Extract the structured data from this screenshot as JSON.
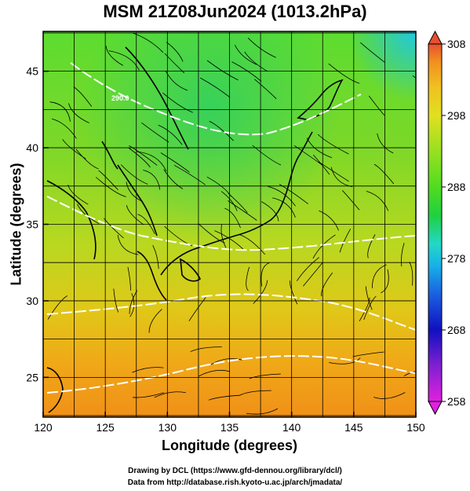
{
  "title": "MSM 21Z08Jun2024 (1013.2hPa)",
  "xlabel": "Longitude (degrees)",
  "ylabel": "Latitude  (degrees)",
  "credit": {
    "line1": "Drawing by DCL (https://www.gfd-dennou.org/library/dcl/)",
    "line2": "Data from http://database.rish.kyoto-u.ac.jp/arch/jmadata/"
  },
  "map": {
    "lon_range": [
      120,
      150
    ],
    "lat_range": [
      22.4,
      47.6
    ],
    "lon_ticks": [
      120,
      125,
      130,
      135,
      140,
      145,
      150
    ],
    "lat_ticks": [
      25,
      30,
      35,
      40,
      45
    ],
    "grid": true,
    "contour_label": "290.0"
  },
  "colorbar": {
    "min": 258,
    "max": 308,
    "ticks": [
      258,
      268,
      278,
      288,
      298,
      308
    ],
    "colors": [
      "#e020e0",
      "#8020d0",
      "#1010c0",
      "#1a60e0",
      "#18b0e8",
      "#22d8c8",
      "#20d040",
      "#50dc20",
      "#98e020",
      "#e0e020",
      "#f0c020",
      "#f09020",
      "#e85030"
    ]
  }
}
